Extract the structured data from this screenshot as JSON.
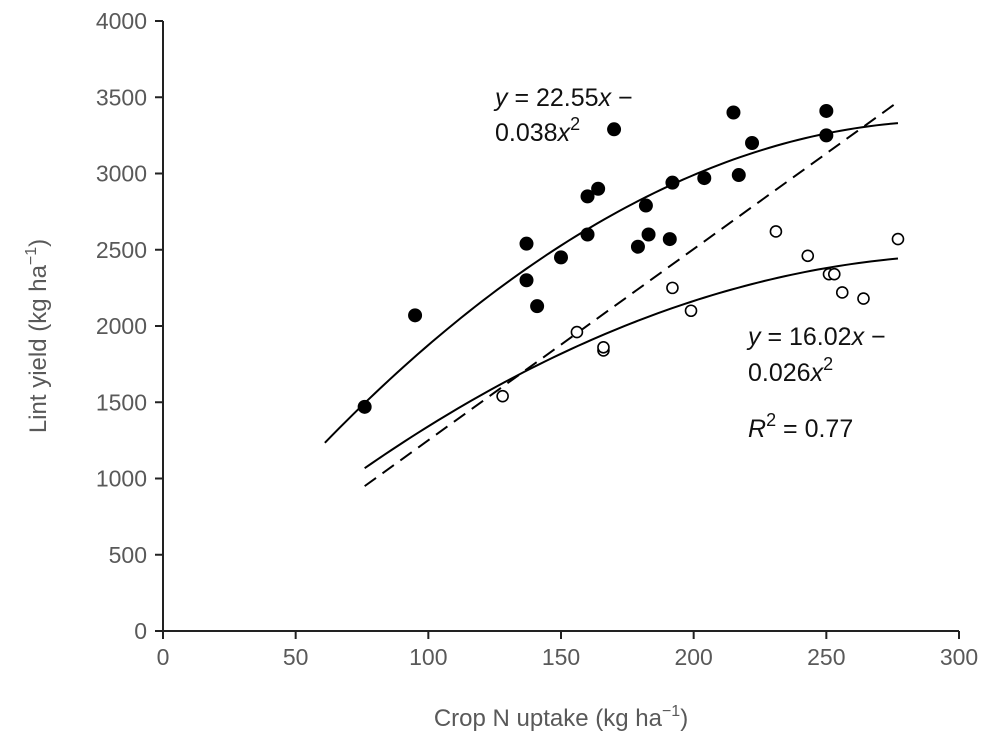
{
  "chart_data": {
    "type": "scatter",
    "xlabel": "Crop N uptake (kg ha",
    "xlabel_sup": "−1",
    "xlabel_end": ")",
    "ylabel": "Lint yield (kg ha",
    "ylabel_sup": "−1",
    "ylabel_end": ")",
    "xlim": [
      0,
      300
    ],
    "ylim": [
      0,
      4000
    ],
    "x_ticks": [
      "0",
      "50",
      "100",
      "150",
      "200",
      "250",
      "300"
    ],
    "y_ticks": [
      "0",
      "500",
      "1000",
      "1500",
      "2000",
      "2500",
      "3000",
      "3500",
      "4000"
    ],
    "grid": false,
    "series": [
      {
        "marker": "filled-circle",
        "color": "#000000",
        "points": [
          [
            76,
            1470
          ],
          [
            95,
            2070
          ],
          [
            137,
            2540
          ],
          [
            137,
            2300
          ],
          [
            141,
            2130
          ],
          [
            150,
            2450
          ],
          [
            160,
            2600
          ],
          [
            160,
            2850
          ],
          [
            164,
            2900
          ],
          [
            170,
            3290
          ],
          [
            179,
            2520
          ],
          [
            182,
            2790
          ],
          [
            183,
            2600
          ],
          [
            191,
            2570
          ],
          [
            192,
            2940
          ],
          [
            204,
            2970
          ],
          [
            215,
            3400
          ],
          [
            217,
            2990
          ],
          [
            222,
            3200
          ],
          [
            250,
            3410
          ],
          [
            250,
            3250
          ]
        ],
        "fit": {
          "type": "quadratic",
          "a": 22.55,
          "b": -0.038,
          "x_range": [
            61,
            277
          ]
        }
      },
      {
        "marker": "open-circle",
        "color": "#000000",
        "points": [
          [
            128,
            1540
          ],
          [
            156,
            1960
          ],
          [
            166,
            1840
          ],
          [
            166,
            1860
          ],
          [
            192,
            2250
          ],
          [
            199,
            2100
          ],
          [
            231,
            2620
          ],
          [
            243,
            2460
          ],
          [
            251,
            2340
          ],
          [
            253,
            2340
          ],
          [
            256,
            2220
          ],
          [
            264,
            2180
          ],
          [
            277,
            2570
          ]
        ],
        "fit": {
          "type": "quadratic",
          "a": 16.02,
          "b": -0.026,
          "x_range": [
            76,
            277
          ]
        }
      }
    ],
    "reference_line": {
      "style": "dashed",
      "from": [
        76,
        950
      ],
      "to": [
        277,
        3470
      ]
    },
    "annotations": {
      "eq1": {
        "y": "y",
        "eq": " = 22.55",
        "x": "x",
        "minus": " −",
        "coef2": "0.038",
        "x2": "x",
        "sup": "2"
      },
      "eq2": {
        "y": "y",
        "eq": " = 16.02",
        "x": "x",
        "minus": " −",
        "coef2": "0.026",
        "x2": "x",
        "sup": "2"
      },
      "r2": {
        "r": "R",
        "sup": "2",
        "value": " = 0.77"
      }
    }
  }
}
